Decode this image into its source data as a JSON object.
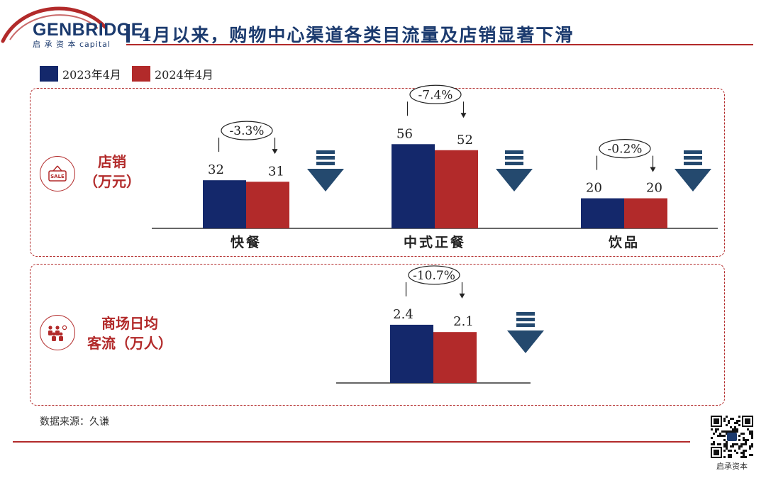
{
  "header": {
    "brand_name": "GENBRIDGE",
    "brand_sub": "启 承 资 本 capital",
    "title": "4月以来，购物中心渠道各类目流量及店销显著下滑"
  },
  "legend": [
    {
      "label": "2023年4月",
      "color": "#14286b"
    },
    {
      "label": "2024年4月",
      "color": "#b22a2a"
    }
  ],
  "metrics": [
    {
      "label_line1": "店销",
      "label_line2": "（万元）",
      "icon": "sale-tag-icon"
    },
    {
      "label_line1": "商场日均",
      "label_line2": "客流（万人）",
      "icon": "crowd-icon"
    }
  ],
  "colors": {
    "series_2023": "#14286b",
    "series_2024": "#b22a2a",
    "decline_arrow": "#24496e",
    "accent": "#b22a2a"
  },
  "chart_data": [
    {
      "type": "bar",
      "categories": [
        "快餐",
        "中式正餐",
        "饮品"
      ],
      "series": [
        {
          "name": "2023年4月",
          "values": [
            32,
            56,
            20
          ],
          "labels": [
            "32",
            "56",
            "20"
          ]
        },
        {
          "name": "2024年4月",
          "values": [
            31,
            52,
            20
          ],
          "labels": [
            "31",
            "52",
            "20"
          ]
        }
      ],
      "annotations": [
        "-3.3%",
        "-7.4%",
        "-0.2%"
      ],
      "decline_icon": "down-arrow-icon"
    },
    {
      "type": "bar",
      "categories": [
        ""
      ],
      "series": [
        {
          "name": "2023年4月",
          "values": [
            2.4
          ],
          "labels": [
            "2.4"
          ]
        },
        {
          "name": "2024年4月",
          "values": [
            2.1
          ],
          "labels": [
            "2.1"
          ]
        }
      ],
      "annotations": [
        "-10.7%"
      ],
      "decline_icon": "down-arrow-icon"
    }
  ],
  "source": "数据来源：久谦",
  "qr_label": "启承资本"
}
